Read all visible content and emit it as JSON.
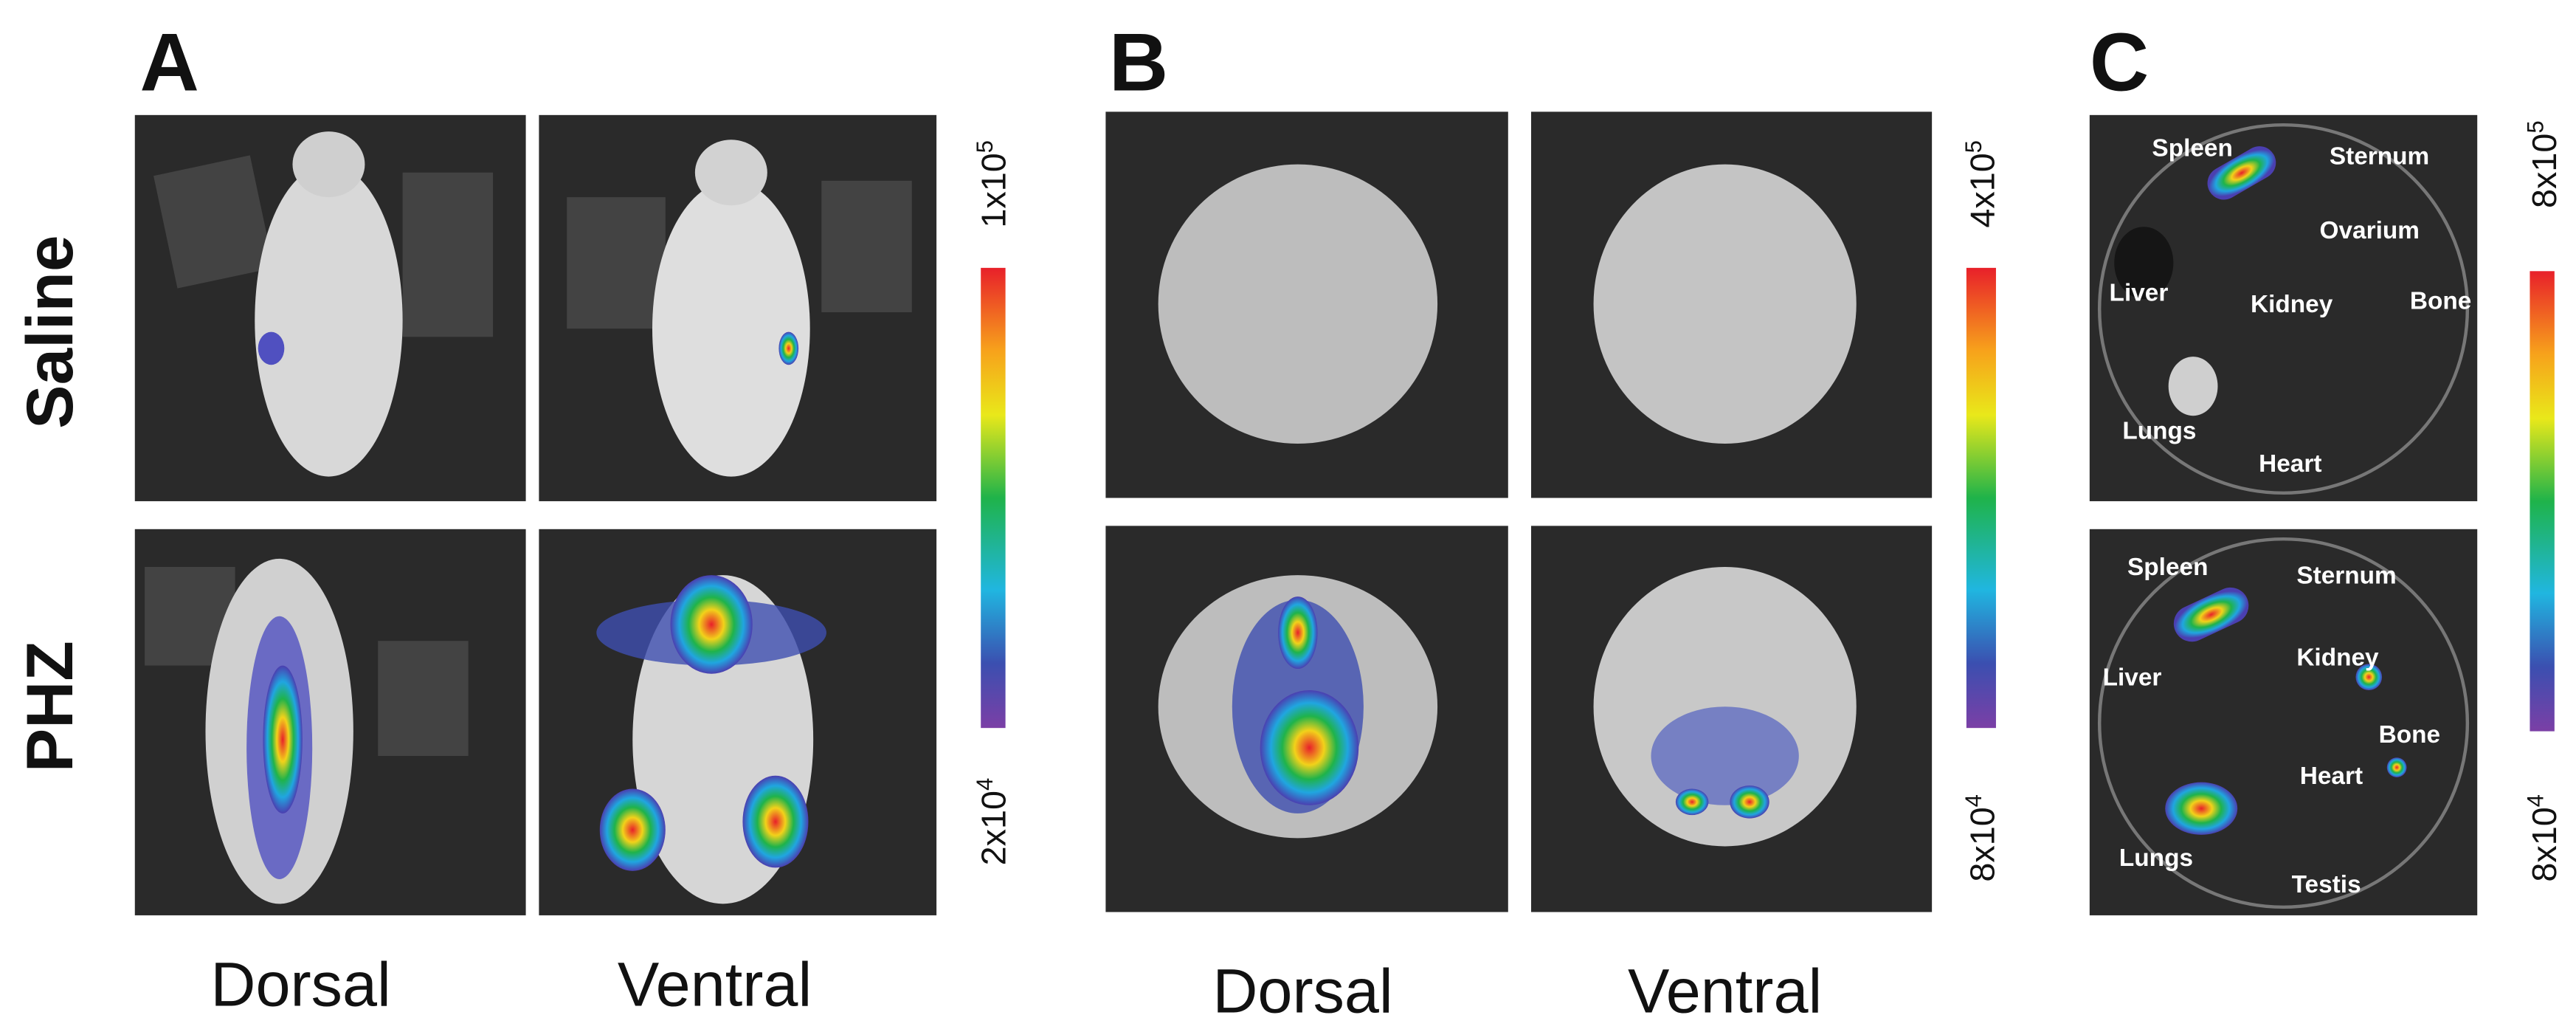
{
  "panels": [
    {
      "label": "A",
      "row_labels": [
        "Saline",
        "PHZ"
      ],
      "column_labels": [
        "Dorsal",
        "Ventral"
      ],
      "scale": {
        "max": {
          "base": "1x10",
          "exponent": "5"
        },
        "min": {
          "base": "2x10",
          "exponent": "4"
        }
      }
    },
    {
      "label": "B",
      "column_labels": [
        "Dorsal",
        "Ventral"
      ],
      "scale": {
        "max": {
          "base": "4x10",
          "exponent": "5"
        },
        "min": {
          "base": "8x10",
          "exponent": "4"
        }
      }
    },
    {
      "label": "C",
      "scale": {
        "max": {
          "base": "8x10",
          "exponent": "5"
        },
        "min": {
          "base": "8x10",
          "exponent": "4"
        }
      },
      "organs": {
        "top": [
          "Spleen",
          "Sternum",
          "Ovarium",
          "Liver",
          "Kidney",
          "Bone",
          "Lungs",
          "Heart"
        ],
        "bottom": [
          "Spleen",
          "Sternum",
          "Kidney",
          "Liver",
          "Bone",
          "Heart",
          "Lungs",
          "Testis"
        ]
      }
    }
  ]
}
